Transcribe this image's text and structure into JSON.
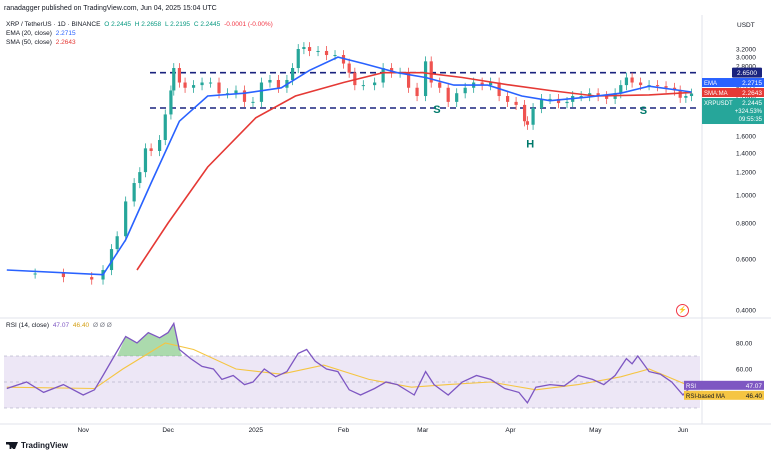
{
  "header": {
    "publisher": "ranadagger published on TradingView.com, Jun 04, 2025 15:04 UTC",
    "currency": "USDT"
  },
  "legend": {
    "symbol": "XRP / TetherUS · 1D · BINANCE",
    "o": "O 2.2445",
    "h": "H 2.2658",
    "l": "L 2.2195",
    "c": "C 2.2445",
    "chg": "-0.0001 (-0.00%)",
    "ema_label": "EMA (20, close)",
    "ema_value": "2.2715",
    "sma_label": "SMA (50, close)",
    "sma_value": "2.2643",
    "rsi_label": "RSI (14, close)",
    "rsi_value": "47.07",
    "rsi_ma_value": "46.40",
    "rsi_extra": "Ø Ø Ø"
  },
  "colors": {
    "up": "#26a69a",
    "down": "#ef5350",
    "ema": "#2962ff",
    "sma": "#e53935",
    "level_line": "#1a237e",
    "rsi_line": "#7e57c2",
    "rsi_ma": "#f5c542",
    "rsi_band": "#ede7f6",
    "pattern_text": "#00796b"
  },
  "chart_data": [
    {
      "type": "candlestick",
      "title": "XRP / TetherUS · 1D · BINANCE",
      "ylabel": "USDT",
      "y_scale": "log",
      "y_ticks": [
        0.4,
        0.6,
        0.8,
        1.0,
        1.2,
        1.4,
        1.6,
        1.8,
        2.0,
        2.2,
        2.4,
        2.6,
        2.8,
        3.0,
        3.2
      ],
      "y_tick_labels": [
        "0.4000",
        "0.6000",
        "0.8000",
        "1.0000",
        "1.2000",
        "1.4000",
        "1.6000",
        "1.8000",
        "2.0000",
        "2.2000",
        "2.4000",
        "2.6000",
        "2.8000",
        "3.0000",
        "3.2000"
      ],
      "x_tick_labels": [
        "Nov",
        "Dec",
        "2025",
        "Feb",
        "Mar",
        "Apr",
        "May",
        "Jun"
      ],
      "x_ticks_dates": [
        "2024-11-01",
        "2024-12-01",
        "2025-01-01",
        "2025-02-01",
        "2025-03-01",
        "2025-04-01",
        "2025-05-01",
        "2025-06-01"
      ],
      "close_series": [
        [
          "2024-10-05",
          0.535
        ],
        [
          "2024-10-15",
          0.535
        ],
        [
          "2024-10-25",
          0.52
        ],
        [
          "2024-11-04",
          0.51
        ],
        [
          "2024-11-08",
          0.55
        ],
        [
          "2024-11-11",
          0.65
        ],
        [
          "2024-11-13",
          0.72
        ],
        [
          "2024-11-16",
          0.95
        ],
        [
          "2024-11-19",
          1.1
        ],
        [
          "2024-11-21",
          1.2
        ],
        [
          "2024-11-23",
          1.45
        ],
        [
          "2024-11-25",
          1.42
        ],
        [
          "2024-11-28",
          1.55
        ],
        [
          "2024-11-30",
          1.9
        ],
        [
          "2024-12-02",
          2.3
        ],
        [
          "2024-12-03",
          2.75
        ],
        [
          "2024-12-05",
          2.45
        ],
        [
          "2024-12-07",
          2.35
        ],
        [
          "2024-12-10",
          2.4
        ],
        [
          "2024-12-13",
          2.45
        ],
        [
          "2024-12-16",
          2.45
        ],
        [
          "2024-12-19",
          2.25
        ],
        [
          "2024-12-22",
          2.25
        ],
        [
          "2024-12-25",
          2.3
        ],
        [
          "2024-12-28",
          2.1
        ],
        [
          "2024-12-31",
          2.1
        ],
        [
          "2025-01-03",
          2.45
        ],
        [
          "2025-01-06",
          2.5
        ],
        [
          "2025-01-09",
          2.35
        ],
        [
          "2025-01-12",
          2.5
        ],
        [
          "2025-01-14",
          2.75
        ],
        [
          "2025-01-16",
          3.2
        ],
        [
          "2025-01-18",
          3.25
        ],
        [
          "2025-01-20",
          3.15
        ],
        [
          "2025-01-23",
          3.15
        ],
        [
          "2025-01-26",
          3.05
        ],
        [
          "2025-01-29",
          3.05
        ],
        [
          "2025-02-01",
          2.85
        ],
        [
          "2025-02-03",
          2.65
        ],
        [
          "2025-02-05",
          2.4
        ],
        [
          "2025-02-08",
          2.4
        ],
        [
          "2025-02-12",
          2.45
        ],
        [
          "2025-02-15",
          2.75
        ],
        [
          "2025-02-18",
          2.65
        ],
        [
          "2025-02-21",
          2.65
        ],
        [
          "2025-02-24",
          2.35
        ],
        [
          "2025-02-27",
          2.2
        ],
        [
          "2025-03-02",
          2.9
        ],
        [
          "2025-03-04",
          2.45
        ],
        [
          "2025-03-07",
          2.35
        ],
        [
          "2025-03-10",
          2.1
        ],
        [
          "2025-03-13",
          2.25
        ],
        [
          "2025-03-16",
          2.35
        ],
        [
          "2025-03-19",
          2.45
        ],
        [
          "2025-03-22",
          2.4
        ],
        [
          "2025-03-25",
          2.45
        ],
        [
          "2025-03-28",
          2.2
        ],
        [
          "2025-03-31",
          2.1
        ],
        [
          "2025-04-03",
          2.05
        ],
        [
          "2025-04-06",
          1.8
        ],
        [
          "2025-04-07",
          1.75
        ],
        [
          "2025-04-09",
          2.0
        ],
        [
          "2025-04-12",
          2.15
        ],
        [
          "2025-04-15",
          2.15
        ],
        [
          "2025-04-18",
          2.08
        ],
        [
          "2025-04-21",
          2.1
        ],
        [
          "2025-04-23",
          2.2
        ],
        [
          "2025-04-26",
          2.2
        ],
        [
          "2025-04-29",
          2.25
        ],
        [
          "2025-05-02",
          2.2
        ],
        [
          "2025-05-05",
          2.15
        ],
        [
          "2025-05-08",
          2.25
        ],
        [
          "2025-05-10",
          2.4
        ],
        [
          "2025-05-12",
          2.55
        ],
        [
          "2025-05-14",
          2.45
        ],
        [
          "2025-05-17",
          2.4
        ],
        [
          "2025-05-20",
          2.4
        ],
        [
          "2025-05-23",
          2.38
        ],
        [
          "2025-05-26",
          2.35
        ],
        [
          "2025-05-29",
          2.3
        ],
        [
          "2025-05-31",
          2.17
        ],
        [
          "2025-06-02",
          2.2
        ],
        [
          "2025-06-04",
          2.2445
        ]
      ],
      "ema20_series": [
        [
          "2024-10-05",
          0.55
        ],
        [
          "2024-11-08",
          0.53
        ],
        [
          "2024-11-16",
          0.7
        ],
        [
          "2024-11-25",
          1.1
        ],
        [
          "2024-12-05",
          1.8
        ],
        [
          "2024-12-15",
          2.2
        ],
        [
          "2024-12-28",
          2.25
        ],
        [
          "2025-01-10",
          2.35
        ],
        [
          "2025-01-20",
          2.7
        ],
        [
          "2025-01-30",
          3.0
        ],
        [
          "2025-02-08",
          2.85
        ],
        [
          "2025-02-20",
          2.65
        ],
        [
          "2025-03-02",
          2.55
        ],
        [
          "2025-03-12",
          2.4
        ],
        [
          "2025-03-24",
          2.4
        ],
        [
          "2025-04-05",
          2.2
        ],
        [
          "2025-04-15",
          2.12
        ],
        [
          "2025-04-28",
          2.18
        ],
        [
          "2025-05-10",
          2.25
        ],
        [
          "2025-05-20",
          2.38
        ],
        [
          "2025-06-04",
          2.2715
        ]
      ],
      "sma50_series": [
        [
          "2024-11-20",
          0.55
        ],
        [
          "2024-12-01",
          0.8
        ],
        [
          "2024-12-15",
          1.25
        ],
        [
          "2025-01-01",
          1.85
        ],
        [
          "2025-01-15",
          2.2
        ],
        [
          "2025-02-01",
          2.45
        ],
        [
          "2025-02-15",
          2.65
        ],
        [
          "2025-03-01",
          2.65
        ],
        [
          "2025-03-15",
          2.55
        ],
        [
          "2025-04-01",
          2.4
        ],
        [
          "2025-04-15",
          2.3
        ],
        [
          "2025-05-01",
          2.2
        ],
        [
          "2025-05-20",
          2.22
        ],
        [
          "2025-06-04",
          2.2643
        ]
      ],
      "levels": [
        {
          "label": "2.6500",
          "value": 2.65
        },
        {
          "label": "2.0000",
          "value": 2.0
        }
      ],
      "price_tags": [
        {
          "name": "EMA",
          "value": 2.2715,
          "text": "2.2715"
        },
        {
          "name": "SMA:MA",
          "value": 2.2643,
          "text": "2.2643"
        },
        {
          "name": "XRPUSDT",
          "value": 2.2445,
          "text": "2.2445",
          "sub": "+324.53%",
          "sub2": "09:55:35"
        }
      ],
      "annotations": [
        {
          "text": "S",
          "date": "2025-03-06",
          "value": 1.92
        },
        {
          "text": "H",
          "date": "2025-04-08",
          "value": 1.46
        },
        {
          "text": "S",
          "date": "2025-05-18",
          "value": 1.91
        }
      ]
    },
    {
      "type": "line",
      "title": "RSI (14, close)",
      "y_ticks": [
        40,
        60,
        80
      ],
      "y_tick_labels": [
        "40.00",
        "60.00",
        "80.00"
      ],
      "band": [
        30,
        70
      ],
      "rsi_series": [
        [
          "2024-10-05",
          45
        ],
        [
          "2024-10-12",
          50
        ],
        [
          "2024-10-18",
          42
        ],
        [
          "2024-10-25",
          48
        ],
        [
          "2024-11-01",
          40
        ],
        [
          "2024-11-05",
          44
        ],
        [
          "2024-11-08",
          55
        ],
        [
          "2024-11-12",
          70
        ],
        [
          "2024-11-16",
          85
        ],
        [
          "2024-11-20",
          80
        ],
        [
          "2024-11-24",
          88
        ],
        [
          "2024-11-28",
          84
        ],
        [
          "2024-12-01",
          88
        ],
        [
          "2024-12-03",
          95
        ],
        [
          "2024-12-05",
          75
        ],
        [
          "2024-12-09",
          68
        ],
        [
          "2024-12-13",
          62
        ],
        [
          "2024-12-17",
          60
        ],
        [
          "2024-12-20",
          52
        ],
        [
          "2024-12-24",
          55
        ],
        [
          "2024-12-28",
          48
        ],
        [
          "2024-12-31",
          50
        ],
        [
          "2025-01-04",
          60
        ],
        [
          "2025-01-08",
          54
        ],
        [
          "2025-01-12",
          58
        ],
        [
          "2025-01-16",
          72
        ],
        [
          "2025-01-19",
          75
        ],
        [
          "2025-01-22",
          66
        ],
        [
          "2025-01-26",
          60
        ],
        [
          "2025-01-30",
          58
        ],
        [
          "2025-02-03",
          44
        ],
        [
          "2025-02-07",
          40
        ],
        [
          "2025-02-12",
          45
        ],
        [
          "2025-02-16",
          50
        ],
        [
          "2025-02-20",
          48
        ],
        [
          "2025-02-26",
          40
        ],
        [
          "2025-03-02",
          58
        ],
        [
          "2025-03-05",
          48
        ],
        [
          "2025-03-10",
          40
        ],
        [
          "2025-03-15",
          50
        ],
        [
          "2025-03-20",
          55
        ],
        [
          "2025-03-25",
          52
        ],
        [
          "2025-03-30",
          45
        ],
        [
          "2025-04-04",
          42
        ],
        [
          "2025-04-07",
          34
        ],
        [
          "2025-04-10",
          46
        ],
        [
          "2025-04-15",
          48
        ],
        [
          "2025-04-20",
          47
        ],
        [
          "2025-04-25",
          55
        ],
        [
          "2025-04-30",
          52
        ],
        [
          "2025-05-04",
          48
        ],
        [
          "2025-05-08",
          55
        ],
        [
          "2025-05-12",
          68
        ],
        [
          "2025-05-14",
          64
        ],
        [
          "2025-05-16",
          70
        ],
        [
          "2025-05-20",
          58
        ],
        [
          "2025-05-24",
          56
        ],
        [
          "2025-05-28",
          50
        ],
        [
          "2025-06-01",
          40
        ],
        [
          "2025-06-04",
          47.07
        ]
      ],
      "rsi_ma_series": [
        [
          "2024-10-05",
          46
        ],
        [
          "2024-11-05",
          45
        ],
        [
          "2024-11-15",
          60
        ],
        [
          "2024-11-30",
          80
        ],
        [
          "2024-12-10",
          75
        ],
        [
          "2024-12-25",
          60
        ],
        [
          "2025-01-10",
          56
        ],
        [
          "2025-01-25",
          63
        ],
        [
          "2025-02-10",
          52
        ],
        [
          "2025-02-25",
          46
        ],
        [
          "2025-03-10",
          48
        ],
        [
          "2025-03-25",
          50
        ],
        [
          "2025-04-10",
          44
        ],
        [
          "2025-04-25",
          48
        ],
        [
          "2025-05-10",
          54
        ],
        [
          "2025-05-20",
          60
        ],
        [
          "2025-06-04",
          46.4
        ]
      ],
      "price_tags": [
        {
          "name": "RSI",
          "value": 47.07,
          "text": "47.07"
        },
        {
          "name": "RSI-based MA",
          "value": 46.4,
          "text": "46.40"
        }
      ]
    }
  ]
}
